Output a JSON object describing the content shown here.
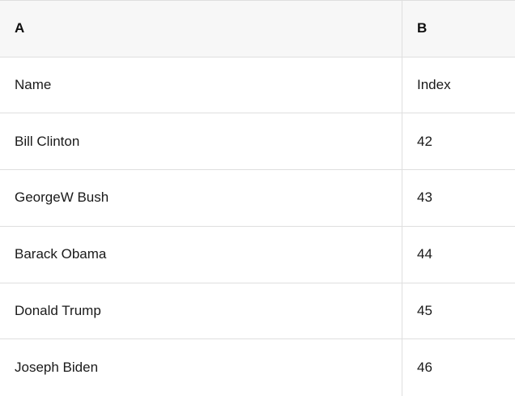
{
  "table": {
    "column_headers": {
      "a": "A",
      "b": "B"
    },
    "rows": [
      {
        "a": "Name",
        "b": "Index"
      },
      {
        "a": "Bill Clinton",
        "b": "42"
      },
      {
        "a": "GeorgeW Bush",
        "b": "43"
      },
      {
        "a": "Barack Obama",
        "b": "44"
      },
      {
        "a": "Donald Trump",
        "b": "45"
      },
      {
        "a": "Joseph Biden",
        "b": "46"
      }
    ],
    "colors": {
      "header_background": "#f7f7f7",
      "row_background": "#ffffff",
      "border": "#dfdfdf",
      "text": "#1a1a1a"
    }
  }
}
